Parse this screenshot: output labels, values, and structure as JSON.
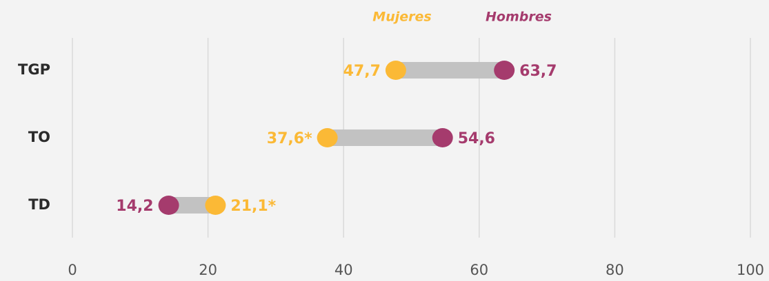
{
  "chart_data": {
    "type": "dumbbell",
    "categories": [
      "TGP",
      "TO",
      "TD"
    ],
    "series": [
      {
        "name": "Mujeres",
        "color": "#fbb936",
        "values": [
          47.7,
          37.6,
          21.1
        ],
        "value_labels": [
          "47,7",
          "37,6*",
          "21,1*"
        ]
      },
      {
        "name": "Hombres",
        "color": "#a53b6d",
        "values": [
          63.7,
          54.6,
          14.2
        ],
        "value_labels": [
          "63,7",
          "54,6",
          "14,2"
        ]
      }
    ],
    "xlim": [
      0,
      100
    ],
    "xticks": [
      0,
      20,
      40,
      60,
      80,
      100
    ],
    "grid": true,
    "connector_color": "#c2c2c2"
  }
}
